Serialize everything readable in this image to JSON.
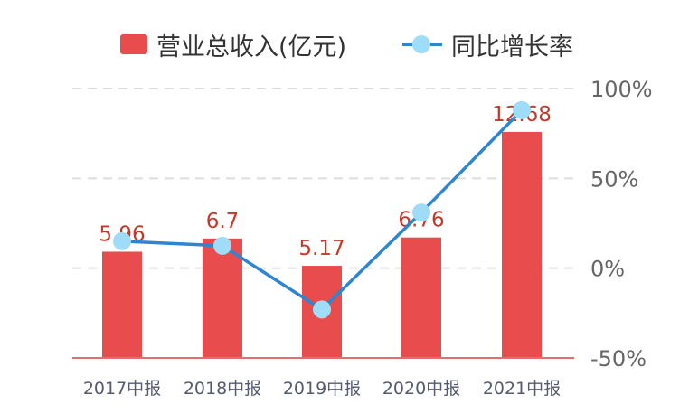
{
  "legend": {
    "bar_label": "营业总收入(亿元)",
    "line_label": "同比增长率"
  },
  "colors": {
    "bar": "#e84c4c",
    "line": "#2e86d1",
    "marker": "#9fdcf8",
    "value_label": "#c0392b",
    "grid": "#dddddd",
    "axis": "#e07070",
    "tick_text": "#555a70"
  },
  "chart_data": {
    "type": "bar",
    "title": "",
    "categories": [
      "2017中报",
      "2018中报",
      "2019中报",
      "2020中报",
      "2021中报"
    ],
    "series": [
      {
        "name": "营业总收入(亿元)",
        "type": "bar",
        "values": [
          5.96,
          6.7,
          5.17,
          6.76,
          12.68
        ],
        "value_labels": [
          "5.96",
          "6.7",
          "5.17",
          "6.76",
          "12.68"
        ],
        "ylim": [
          0,
          16
        ]
      },
      {
        "name": "同比增长率",
        "type": "line",
        "values": [
          15,
          12.5,
          -23,
          31,
          88
        ],
        "axis": "right",
        "ylim": [
          -50,
          100
        ]
      }
    ],
    "right_axis_ticks": [
      "100%",
      "50%",
      "0%",
      "-50%"
    ],
    "right_axis_values": [
      100,
      50,
      0,
      -50
    ],
    "grid": true,
    "legend_position": "top"
  }
}
